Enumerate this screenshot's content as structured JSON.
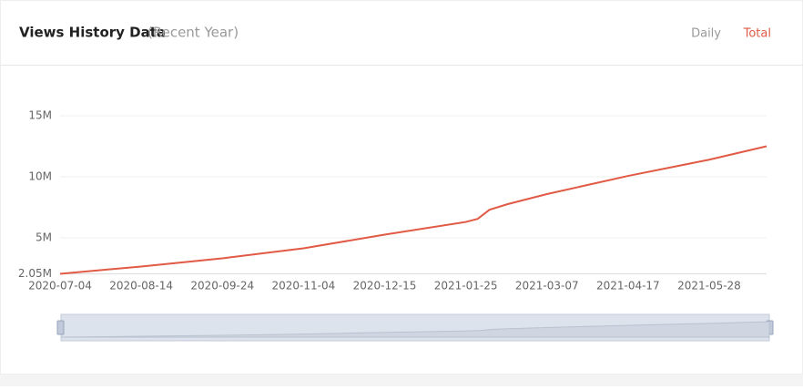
{
  "tabs": [
    "Daily",
    "Total"
  ],
  "chart_data": {
    "type": "line",
    "title": "Views History Data",
    "subtitle": "(Recent Year)",
    "x": [
      "2020-07-04",
      "2020-08-14",
      "2020-09-24",
      "2020-11-04",
      "2020-12-15",
      "2021-01-25",
      "2021-01-31",
      "2021-02-06",
      "2021-02-15",
      "2021-03-07",
      "2021-04-17",
      "2021-05-28",
      "2021-06-26"
    ],
    "series": [
      {
        "name": "Total",
        "color": "#e05a45",
        "values": [
          2050000,
          2650000,
          3320000,
          4140000,
          5260000,
          6300000,
          6550000,
          7300000,
          7750000,
          8580000,
          10070000,
          11400000,
          12500000
        ]
      }
    ],
    "xlim": [
      "2020-07-04",
      "2021-06-26"
    ],
    "xticks": [
      "2020-07-04",
      "2020-08-14",
      "2020-09-24",
      "2020-11-04",
      "2020-12-15",
      "2021-01-25",
      "2021-03-07",
      "2021-04-17",
      "2021-05-28"
    ],
    "ylim": [
      2050000,
      15000000
    ],
    "yticks": [
      {
        "value": 2050000,
        "label": "2.05M"
      },
      {
        "value": 5000000,
        "label": "5M"
      },
      {
        "value": 10000000,
        "label": "10M"
      },
      {
        "value": 15000000,
        "label": "15M"
      }
    ],
    "grid": true
  }
}
